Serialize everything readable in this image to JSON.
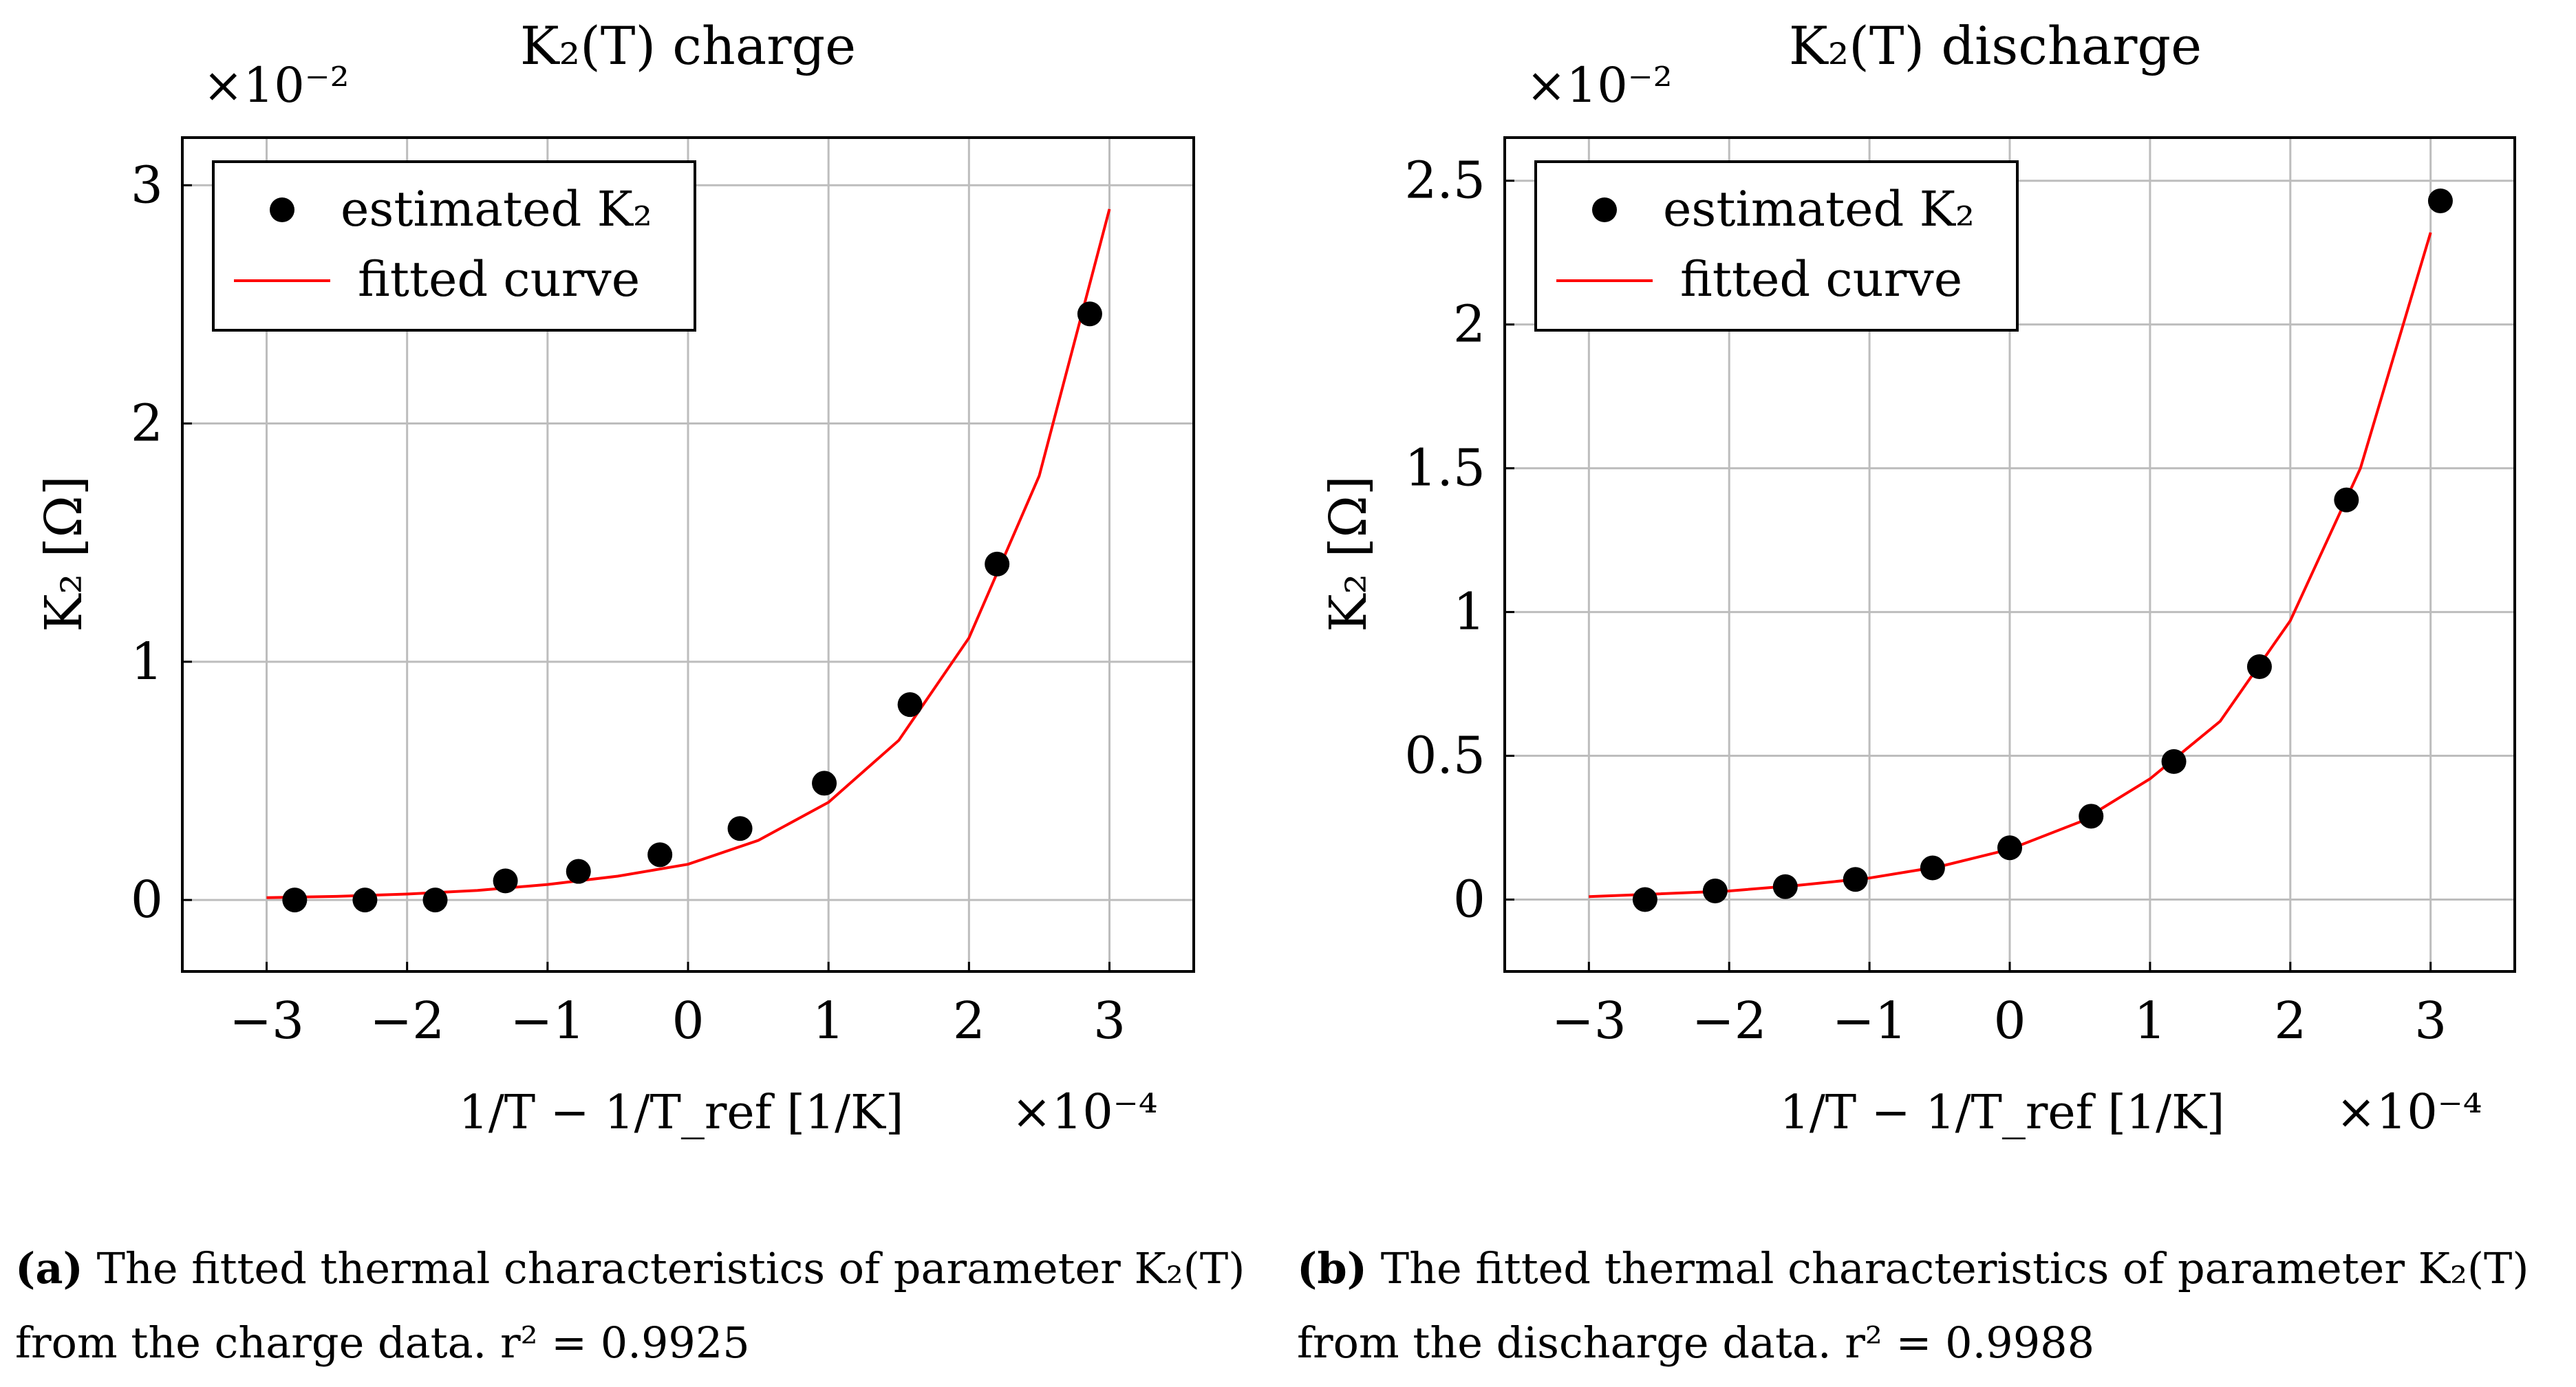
{
  "chart_data": [
    {
      "type": "scatter",
      "title": "K₂(T) charge",
      "xlabel": "1/T − 1/T_ref [1/K]",
      "ylabel": "K₂ [Ω]",
      "x_multiplier": "×10⁻⁴",
      "y_multiplier": "×10⁻²",
      "xlim": [
        -3.6,
        3.6
      ],
      "ylim": [
        -0.3,
        3.2
      ],
      "xticks": [
        -3,
        -2,
        -1,
        0,
        1,
        2,
        3
      ],
      "yticks": [
        0,
        1,
        2,
        3
      ],
      "grid": true,
      "legend_position": "top-left",
      "series": [
        {
          "name": "estimated K₂",
          "kind": "points",
          "color": "#000000",
          "x": [
            -2.8,
            -2.3,
            -1.8,
            -1.3,
            -0.78,
            -0.2,
            0.37,
            0.97,
            1.58,
            2.2,
            2.86
          ],
          "y": [
            0.0,
            0.0,
            0.0,
            0.08,
            0.12,
            0.19,
            0.3,
            0.49,
            0.82,
            1.41,
            2.46
          ]
        },
        {
          "name": "fitted curve",
          "kind": "line",
          "color": "#ff0000",
          "x": [
            -3.0,
            -2.5,
            -2.0,
            -1.5,
            -1.0,
            -0.5,
            0.0,
            0.5,
            1.0,
            1.5,
            2.0,
            2.5,
            3.0
          ],
          "y": [
            0.01,
            0.015,
            0.025,
            0.04,
            0.065,
            0.1,
            0.15,
            0.25,
            0.41,
            0.67,
            1.1,
            1.78,
            2.9
          ]
        }
      ]
    },
    {
      "type": "scatter",
      "title": "K₂(T) discharge",
      "xlabel": "1/T − 1/T_ref [1/K]",
      "ylabel": "K₂ [Ω]",
      "x_multiplier": "×10⁻⁴",
      "y_multiplier": "×10⁻²",
      "xlim": [
        -3.6,
        3.6
      ],
      "ylim": [
        -0.25,
        2.65
      ],
      "xticks": [
        -3,
        -2,
        -1,
        0,
        1,
        2,
        3
      ],
      "yticks": [
        0,
        0.5,
        1,
        1.5,
        2,
        2.5
      ],
      "grid": true,
      "legend_position": "top-left",
      "series": [
        {
          "name": "estimated K₂",
          "kind": "points",
          "color": "#000000",
          "x": [
            -2.6,
            -2.1,
            -1.6,
            -1.1,
            -0.55,
            0.0,
            0.58,
            1.17,
            1.78,
            2.4,
            3.07
          ],
          "y": [
            0.0,
            0.03,
            0.045,
            0.07,
            0.11,
            0.18,
            0.29,
            0.48,
            0.81,
            1.39,
            2.43
          ]
        },
        {
          "name": "fitted curve",
          "kind": "line",
          "color": "#ff0000",
          "x": [
            -3.0,
            -2.5,
            -2.0,
            -1.5,
            -1.0,
            -0.5,
            0.0,
            0.5,
            1.0,
            1.5,
            2.0,
            2.5,
            3.0
          ],
          "y": [
            0.01,
            0.02,
            0.03,
            0.05,
            0.075,
            0.115,
            0.175,
            0.27,
            0.42,
            0.62,
            0.97,
            1.5,
            2.32
          ]
        }
      ]
    }
  ],
  "captions": [
    {
      "label": "(a)",
      "text": "The fitted thermal characteristics of parameter K₂(T) from the charge data. r² = 0.9925"
    },
    {
      "label": "(b)",
      "text": "The fitted thermal characteristics of parameter K₂(T) from the discharge data. r² = 0.9988"
    }
  ]
}
